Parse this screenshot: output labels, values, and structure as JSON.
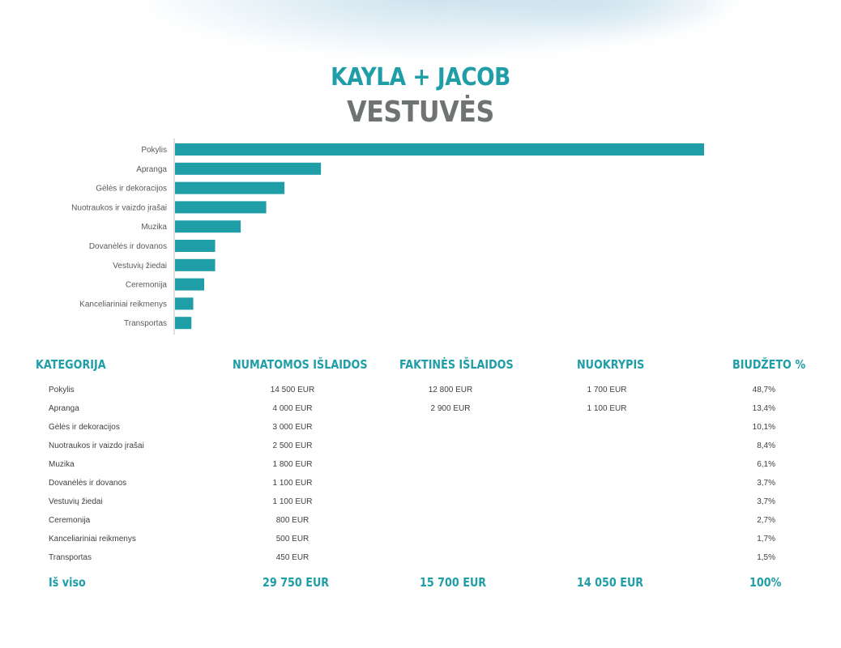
{
  "title": {
    "line1": "KAYLA + JACOB",
    "line2": "VESTUVĖS"
  },
  "colors": {
    "accent": "#1f9ea7",
    "bar": "#1f9ea7",
    "title_gray": "#6f7374",
    "text": "#404040"
  },
  "chart_data": {
    "type": "bar",
    "orientation": "horizontal",
    "categories": [
      "Pokylis",
      "Apranga",
      "Gėlės ir dekoracijos",
      "Nuotraukos ir vaizdo įrašai",
      "Muzika",
      "Dovanėlės ir dovanos",
      "Vestuvių žiedai",
      "Ceremonija",
      "Kanceliariniai reikmenys",
      "Transportas"
    ],
    "values": [
      14500,
      4000,
      3000,
      2500,
      1800,
      1100,
      1100,
      800,
      500,
      450
    ],
    "xlim": [
      0,
      14500
    ],
    "grid": false,
    "legend": "none"
  },
  "table": {
    "headers": {
      "category": "KATEGORIJA",
      "planned": "NUMATOMOS IŠLAIDOS",
      "actual": "FAKTINĖS IŠLAIDOS",
      "variance": "NUOKRYPIS",
      "budget": "BIUDŽETO %"
    },
    "rows": [
      {
        "category": "Pokylis",
        "planned": "14 500 EUR",
        "actual": "12 800 EUR",
        "variance": "1 700 EUR",
        "budget": "48,7%"
      },
      {
        "category": "Apranga",
        "planned": "4 000 EUR",
        "actual": "2 900 EUR",
        "variance": "1 100 EUR",
        "budget": "13,4%"
      },
      {
        "category": "Gėlės ir dekoracijos",
        "planned": "3 000 EUR",
        "actual": "",
        "variance": "",
        "budget": "10,1%"
      },
      {
        "category": "Nuotraukos ir vaizdo įrašai",
        "planned": "2 500 EUR",
        "actual": "",
        "variance": "",
        "budget": "8,4%"
      },
      {
        "category": "Muzika",
        "planned": "1 800 EUR",
        "actual": "",
        "variance": "",
        "budget": "6,1%"
      },
      {
        "category": "Dovanėlės ir dovanos",
        "planned": "1 100 EUR",
        "actual": "",
        "variance": "",
        "budget": "3,7%"
      },
      {
        "category": "Vestuvių žiedai",
        "planned": "1 100 EUR",
        "actual": "",
        "variance": "",
        "budget": "3,7%"
      },
      {
        "category": "Ceremonija",
        "planned": "800 EUR",
        "actual": "",
        "variance": "",
        "budget": "2,7%"
      },
      {
        "category": "Kanceliariniai reikmenys",
        "planned": "500 EUR",
        "actual": "",
        "variance": "",
        "budget": "1,7%"
      },
      {
        "category": "Transportas",
        "planned": "450 EUR",
        "actual": "",
        "variance": "",
        "budget": "1,5%"
      }
    ],
    "totals": {
      "label": "Iš viso",
      "planned": "29 750 EUR",
      "actual": "15 700 EUR",
      "variance": "14 050 EUR",
      "budget": "100%"
    }
  }
}
